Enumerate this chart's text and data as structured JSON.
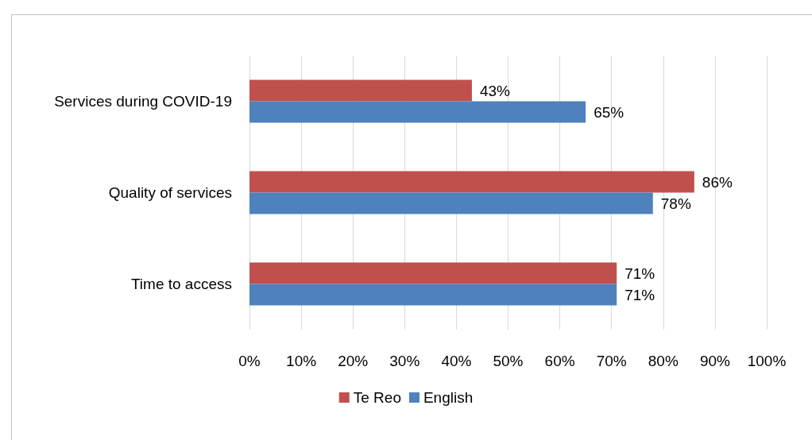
{
  "chart_data": {
    "type": "bar",
    "orientation": "horizontal",
    "categories": [
      "Services during COVID-19",
      "Quality of services",
      "Time to access"
    ],
    "series": [
      {
        "name": "Te Reo",
        "color": "#c0504d",
        "values": [
          43,
          86,
          71
        ],
        "value_labels": [
          "43%",
          "86%",
          "71%"
        ]
      },
      {
        "name": "English",
        "color": "#4f81bd",
        "values": [
          65,
          78,
          71
        ],
        "value_labels": [
          "65%",
          "78%",
          "71%"
        ]
      }
    ],
    "xlim": [
      0,
      100
    ],
    "xticks": [
      {
        "value": 0,
        "label": "0%"
      },
      {
        "value": 10,
        "label": "10%"
      },
      {
        "value": 20,
        "label": "20%"
      },
      {
        "value": 30,
        "label": "30%"
      },
      {
        "value": 40,
        "label": "40%"
      },
      {
        "value": 50,
        "label": "50%"
      },
      {
        "value": 60,
        "label": "60%"
      },
      {
        "value": 70,
        "label": "70%"
      },
      {
        "value": 80,
        "label": "80%"
      },
      {
        "value": 90,
        "label": "90%"
      },
      {
        "value": 100,
        "label": "100%"
      }
    ],
    "grid": "x",
    "legend": "bottom"
  }
}
